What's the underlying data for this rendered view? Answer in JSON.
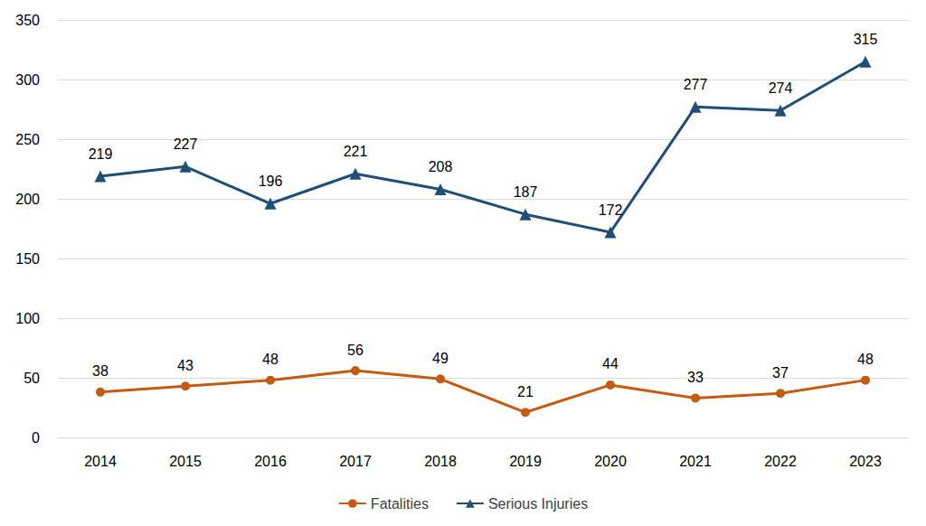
{
  "chart_data": {
    "type": "line",
    "categories": [
      "2014",
      "2015",
      "2016",
      "2017",
      "2018",
      "2019",
      "2020",
      "2021",
      "2022",
      "2023"
    ],
    "series": [
      {
        "name": "Fatalities",
        "color": "#c55a11",
        "marker": "circle",
        "line_style": "solid",
        "values": [
          38,
          43,
          48,
          56,
          49,
          21,
          44,
          33,
          37,
          48
        ]
      },
      {
        "name": "Serious Injuries",
        "color": "#1f4e79",
        "marker": "triangle",
        "line_style": "solid",
        "values": [
          219,
          227,
          196,
          221,
          208,
          187,
          172,
          277,
          274,
          315
        ]
      }
    ],
    "ylim": [
      0,
      350
    ],
    "yticks": [
      0,
      50,
      100,
      150,
      200,
      250,
      300,
      350
    ],
    "grid": true,
    "legend": "bottom",
    "data_labels": true
  }
}
